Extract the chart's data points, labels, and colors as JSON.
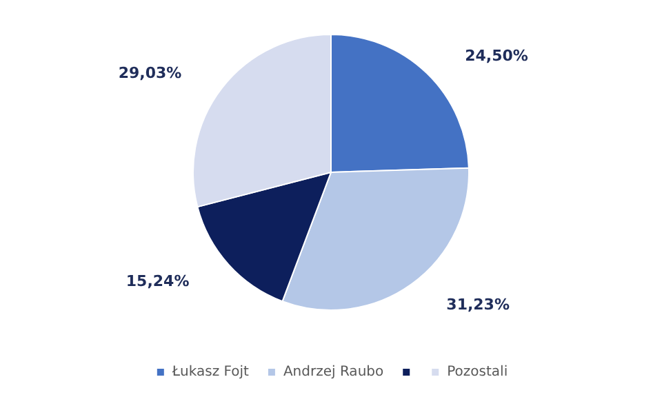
{
  "chart_data": {
    "type": "pie",
    "categories": [
      "Łukasz Fojt",
      "Andrzej Raubo",
      null,
      "Pozostali"
    ],
    "values": [
      24.5,
      31.23,
      15.24,
      29.03
    ],
    "colors": [
      "#4472c4",
      "#b4c7e7",
      "#0d1f5c",
      "#d6dcef"
    ],
    "value_labels": [
      "24,50%",
      "31,23%",
      "15,24%",
      "29,03%"
    ],
    "legend": "bottom"
  }
}
